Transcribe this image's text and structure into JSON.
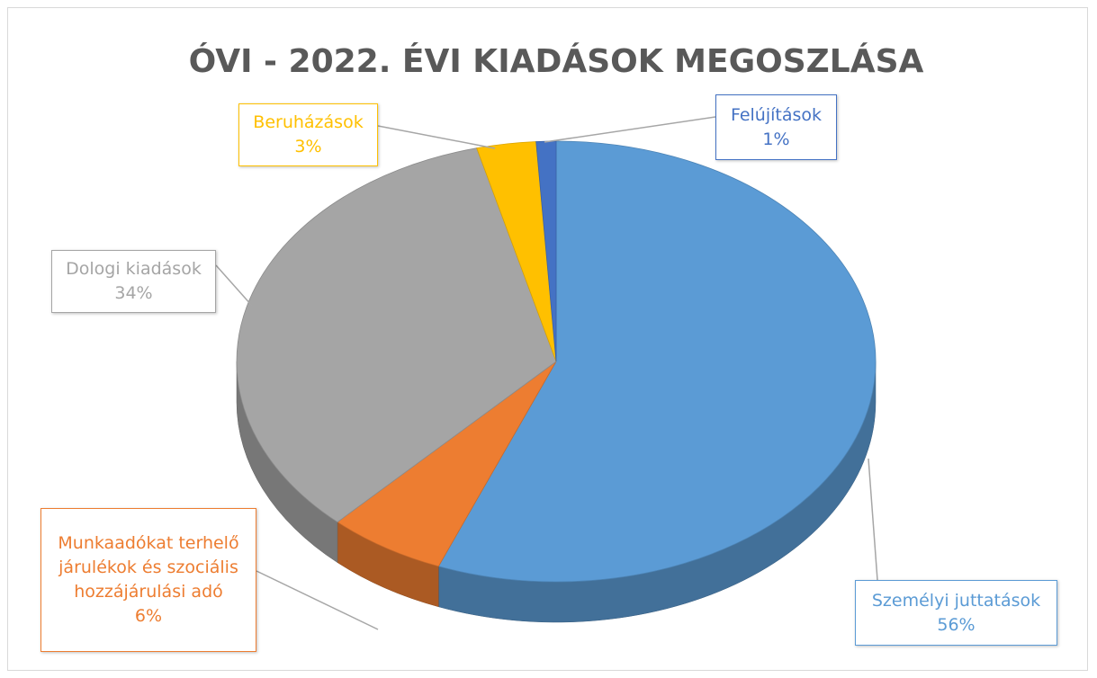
{
  "chart_data": {
    "type": "pie",
    "title": "ÓVI - 2022. ÉVI KIADÁSOK MEGOSZLÁSA",
    "categories": [
      "Személyi juttatások",
      "Munkaadókat terhelő járulékok és szociális hozzájárulási adó",
      "Dologi kiadások",
      "Beruházások",
      "Felújítások"
    ],
    "values": [
      56,
      6,
      34,
      3,
      1
    ],
    "value_labels": [
      "56%",
      "6%",
      "34%",
      "3%",
      "1%"
    ],
    "colors": [
      "#5b9bd5",
      "#ed7d31",
      "#a5a5a5",
      "#ffc000",
      "#4472c4"
    ]
  }
}
